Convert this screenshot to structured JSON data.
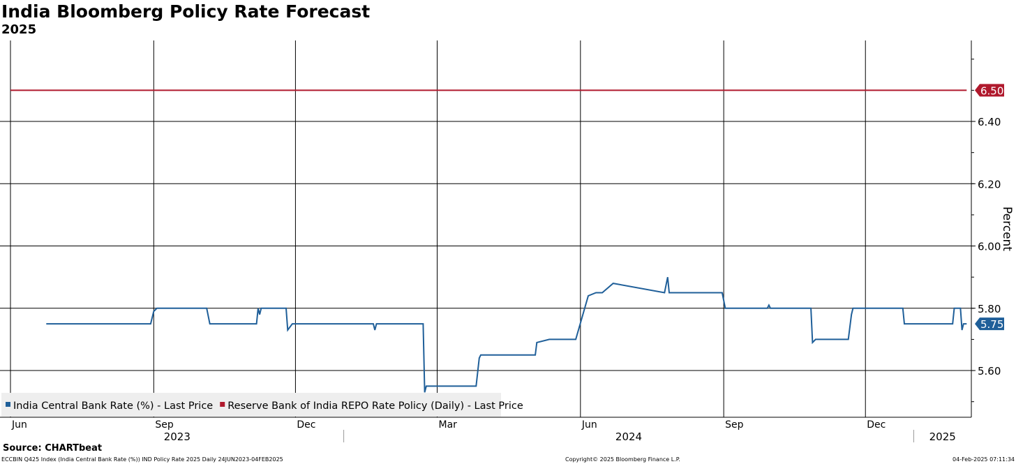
{
  "header": {
    "title": "India Bloomberg Policy Rate Forecast",
    "subtitle": "2025"
  },
  "footer": {
    "source": "Source: CHARTbeat",
    "description": "ECCBIN Q425 Index (India Central Bank Rate (%)) IND Policy Rate 2025  Daily 24JUN2023-04FEB2025",
    "copyright": "Copyright© 2025 Bloomberg Finance L.P.",
    "timestamp": "04-Feb-2025 07:11:34"
  },
  "colors": {
    "series_blue": "#1f5f99",
    "series_red": "#b0192d",
    "grid": "#000000"
  },
  "chart_data": {
    "type": "line",
    "ylabel": "Percent",
    "ylim": [
      5.45,
      6.66
    ],
    "yticks": [
      "5.60",
      "5.80",
      "6.00",
      "6.20",
      "6.40"
    ],
    "x_range": [
      "2023-06-01",
      "2025-02-07"
    ],
    "month_ticks": [
      {
        "date": "2023-06-01",
        "label": "Jun"
      },
      {
        "date": "2023-09-01",
        "label": "Sep"
      },
      {
        "date": "2023-12-01",
        "label": "Dec"
      },
      {
        "date": "2024-03-01",
        "label": "Mar"
      },
      {
        "date": "2024-06-01",
        "label": "Jun"
      },
      {
        "date": "2024-09-01",
        "label": "Sep"
      },
      {
        "date": "2024-12-01",
        "label": "Dec"
      }
    ],
    "year_labels": [
      {
        "label": "2023",
        "from": "2023-06-01",
        "to": "2024-01-01"
      },
      {
        "label": "2024",
        "from": "2024-01-01",
        "to": "2025-01-01"
      },
      {
        "label": "2025",
        "from": "2025-01-01",
        "to": "2025-02-07"
      }
    ],
    "grid": true,
    "legend_position": "bottom-left",
    "series": [
      {
        "name": "India Central Bank Rate (%) - Last Price",
        "color": "#1f5f99",
        "last_label": "5.75",
        "points": [
          [
            "2023-06-24",
            5.75
          ],
          [
            "2023-08-30",
            5.75
          ],
          [
            "2023-09-01",
            5.79
          ],
          [
            "2023-09-03",
            5.8
          ],
          [
            "2023-10-05",
            5.8
          ],
          [
            "2023-10-07",
            5.75
          ],
          [
            "2023-11-06",
            5.75
          ],
          [
            "2023-11-07",
            5.8
          ],
          [
            "2023-11-08",
            5.78
          ],
          [
            "2023-11-09",
            5.8
          ],
          [
            "2023-11-25",
            5.8
          ],
          [
            "2023-11-26",
            5.73
          ],
          [
            "2023-11-29",
            5.75
          ],
          [
            "2024-01-20",
            5.75
          ],
          [
            "2024-01-21",
            5.73
          ],
          [
            "2024-01-22",
            5.75
          ],
          [
            "2024-02-21",
            5.75
          ],
          [
            "2024-02-22",
            5.53
          ],
          [
            "2024-02-23",
            5.55
          ],
          [
            "2024-03-26",
            5.55
          ],
          [
            "2024-03-28",
            5.64
          ],
          [
            "2024-03-29",
            5.65
          ],
          [
            "2024-05-03",
            5.65
          ],
          [
            "2024-05-04",
            5.69
          ],
          [
            "2024-05-12",
            5.7
          ],
          [
            "2024-05-29",
            5.7
          ],
          [
            "2024-06-06",
            5.84
          ],
          [
            "2024-06-11",
            5.85
          ],
          [
            "2024-06-15",
            5.85
          ],
          [
            "2024-06-22",
            5.88
          ],
          [
            "2024-07-25",
            5.85
          ],
          [
            "2024-07-27",
            5.9
          ],
          [
            "2024-07-28",
            5.85
          ],
          [
            "2024-08-31",
            5.85
          ],
          [
            "2024-09-02",
            5.8
          ],
          [
            "2024-09-29",
            5.8
          ],
          [
            "2024-09-30",
            5.81
          ],
          [
            "2024-10-01",
            5.8
          ],
          [
            "2024-10-27",
            5.8
          ],
          [
            "2024-10-28",
            5.69
          ],
          [
            "2024-10-30",
            5.7
          ],
          [
            "2024-11-20",
            5.7
          ],
          [
            "2024-11-22",
            5.78
          ],
          [
            "2024-11-23",
            5.8
          ],
          [
            "2024-12-25",
            5.8
          ],
          [
            "2024-12-26",
            5.75
          ],
          [
            "2025-01-26",
            5.75
          ],
          [
            "2025-01-27",
            5.8
          ],
          [
            "2025-01-31",
            5.8
          ],
          [
            "2025-02-01",
            5.73
          ],
          [
            "2025-02-02",
            5.75
          ],
          [
            "2025-02-04",
            5.75
          ]
        ]
      },
      {
        "name": "Reserve Bank of India REPO Rate Policy (Daily) - Last Price",
        "color": "#b0192d",
        "last_label": "6.50",
        "points": [
          [
            "2023-06-01",
            6.5
          ],
          [
            "2025-02-04",
            6.5
          ]
        ]
      }
    ]
  }
}
